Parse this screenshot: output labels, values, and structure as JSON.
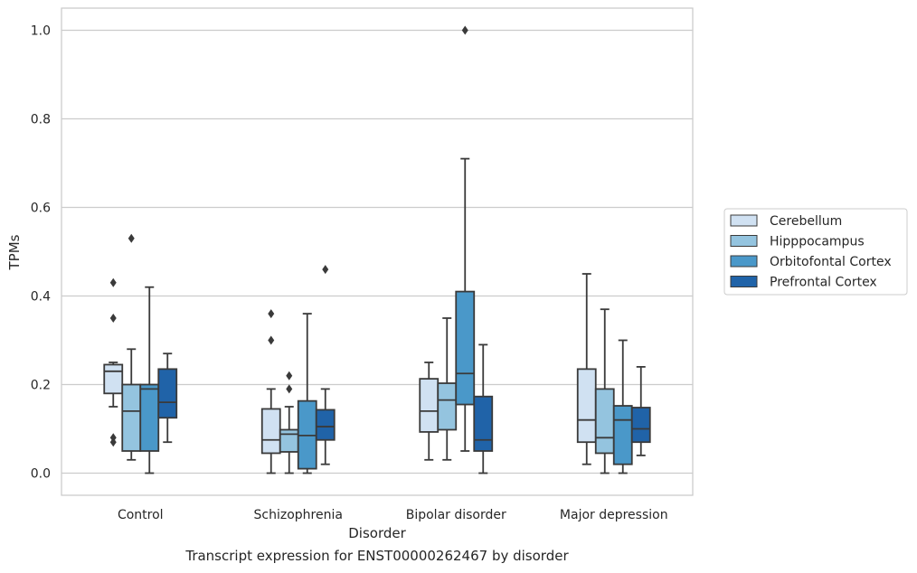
{
  "caption": "Transcript expression for ENST00000262467 by disorder",
  "chart_data": {
    "type": "boxplot",
    "xlabel": "Disorder",
    "ylabel": "TPMs",
    "ylim": [
      -0.05,
      1.05
    ],
    "yticks": [
      0.0,
      0.2,
      0.4,
      0.6,
      0.8,
      1.0
    ],
    "ytick_labels": [
      "0.0",
      "0.2",
      "0.4",
      "0.6",
      "0.8",
      "1.0"
    ],
    "grid": "horizontal",
    "legend_position": "right",
    "categories": [
      "Control",
      "Schizophrenia",
      "Bipolar disorder",
      "Major depression"
    ],
    "series": [
      {
        "name": "Cerebellum",
        "color": "#d0e1f2",
        "boxes": [
          {
            "whislo": 0.15,
            "q1": 0.18,
            "med": 0.23,
            "q3": 0.245,
            "whishi": 0.25,
            "fliers": [
              0.43,
              0.35,
              0.08,
              0.07
            ]
          },
          {
            "whislo": 0.0,
            "q1": 0.045,
            "med": 0.075,
            "q3": 0.145,
            "whishi": 0.19,
            "fliers": [
              0.36,
              0.3
            ]
          },
          {
            "whislo": 0.03,
            "q1": 0.093,
            "med": 0.14,
            "q3": 0.213,
            "whishi": 0.25,
            "fliers": []
          },
          {
            "whislo": 0.02,
            "q1": 0.07,
            "med": 0.12,
            "q3": 0.235,
            "whishi": 0.45,
            "fliers": []
          }
        ]
      },
      {
        "name": "Hipppocampus",
        "color": "#94c4df",
        "boxes": [
          {
            "whislo": 0.03,
            "q1": 0.05,
            "med": 0.14,
            "q3": 0.2,
            "whishi": 0.28,
            "fliers": [
              0.53
            ]
          },
          {
            "whislo": 0.0,
            "q1": 0.048,
            "med": 0.088,
            "q3": 0.098,
            "whishi": 0.15,
            "fliers": [
              0.22,
              0.19
            ]
          },
          {
            "whislo": 0.03,
            "q1": 0.098,
            "med": 0.165,
            "q3": 0.203,
            "whishi": 0.35,
            "fliers": []
          },
          {
            "whislo": 0.0,
            "q1": 0.045,
            "med": 0.08,
            "q3": 0.19,
            "whishi": 0.37,
            "fliers": []
          }
        ]
      },
      {
        "name": "Orbitofontal Cortex",
        "color": "#4a98c9",
        "boxes": [
          {
            "whislo": 0.0,
            "q1": 0.05,
            "med": 0.19,
            "q3": 0.2,
            "whishi": 0.42,
            "fliers": []
          },
          {
            "whislo": 0.0,
            "q1": 0.01,
            "med": 0.085,
            "q3": 0.163,
            "whishi": 0.36,
            "fliers": []
          },
          {
            "whislo": 0.05,
            "q1": 0.155,
            "med": 0.225,
            "q3": 0.41,
            "whishi": 0.71,
            "fliers": [
              1.0
            ]
          },
          {
            "whislo": 0.0,
            "q1": 0.02,
            "med": 0.12,
            "q3": 0.152,
            "whishi": 0.3,
            "fliers": []
          }
        ]
      },
      {
        "name": "Prefrontal Cortex",
        "color": "#2063a8",
        "boxes": [
          {
            "whislo": 0.07,
            "q1": 0.125,
            "med": 0.16,
            "q3": 0.235,
            "whishi": 0.27,
            "fliers": []
          },
          {
            "whislo": 0.02,
            "q1": 0.075,
            "med": 0.105,
            "q3": 0.143,
            "whishi": 0.19,
            "fliers": [
              0.46
            ]
          },
          {
            "whislo": 0.0,
            "q1": 0.05,
            "med": 0.075,
            "q3": 0.173,
            "whishi": 0.29,
            "fliers": []
          },
          {
            "whislo": 0.04,
            "q1": 0.07,
            "med": 0.1,
            "q3": 0.148,
            "whishi": 0.24,
            "fliers": []
          }
        ]
      }
    ]
  }
}
